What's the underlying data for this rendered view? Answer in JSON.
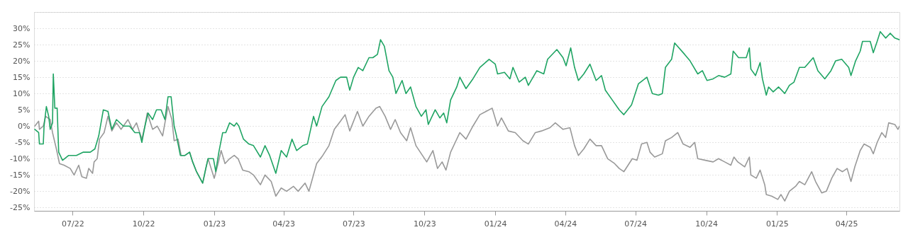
{
  "chart_data": {
    "type": "line",
    "grid": "y",
    "line_style": "solid",
    "xlim": [
      "2022-05-12",
      "2025-06-09"
    ],
    "xticks": [
      {
        "value": "2022-07-01",
        "label": "07/22"
      },
      {
        "value": "2022-10-01",
        "label": "10/22"
      },
      {
        "value": "2023-01-01",
        "label": "01/23"
      },
      {
        "value": "2023-04-01",
        "label": "04/23"
      },
      {
        "value": "2023-07-01",
        "label": "07/23"
      },
      {
        "value": "2023-10-01",
        "label": "10/23"
      },
      {
        "value": "2024-01-01",
        "label": "01/24"
      },
      {
        "value": "2024-04-01",
        "label": "04/24"
      },
      {
        "value": "2024-07-01",
        "label": "07/24"
      },
      {
        "value": "2024-10-01",
        "label": "10/24"
      },
      {
        "value": "2025-01-01",
        "label": "01/25"
      },
      {
        "value": "2025-04-01",
        "label": "04/25"
      }
    ],
    "ylim": [
      -26,
      35
    ],
    "yticks": [
      {
        "value": -25,
        "label": "-25%"
      },
      {
        "value": -20,
        "label": "-20%"
      },
      {
        "value": -15,
        "label": "-15%"
      },
      {
        "value": -10,
        "label": "-10%"
      },
      {
        "value": -5,
        "label": "-5%"
      },
      {
        "value": 0,
        "label": "0%"
      },
      {
        "value": 5,
        "label": "5%"
      },
      {
        "value": 10,
        "label": "10%"
      },
      {
        "value": 15,
        "label": "15%"
      },
      {
        "value": 20,
        "label": "20%"
      },
      {
        "value": 25,
        "label": "25%"
      },
      {
        "value": 30,
        "label": "30%"
      },
      {
        "value": 35,
        "label": null
      }
    ],
    "series": [
      {
        "color": "#999999",
        "x": [
          "2022-05-13",
          "2022-05-18",
          "2022-05-19",
          "2022-05-24",
          "2022-05-27",
          "2022-06-02",
          "2022-06-05",
          "2022-06-10",
          "2022-06-14",
          "2022-06-20",
          "2022-06-28",
          "2022-07-03",
          "2022-07-09",
          "2022-07-13",
          "2022-07-19",
          "2022-07-22",
          "2022-07-27",
          "2022-07-29",
          "2022-08-02",
          "2022-08-05",
          "2022-08-11",
          "2022-08-16",
          "2022-08-21",
          "2022-08-27",
          "2022-09-02",
          "2022-09-11",
          "2022-09-17",
          "2022-09-22",
          "2022-09-29",
          "2022-10-03",
          "2022-10-06",
          "2022-10-13",
          "2022-10-19",
          "2022-10-26",
          "2022-10-29",
          "2022-11-02",
          "2022-11-07",
          "2022-11-10",
          "2022-11-15",
          "2022-11-19",
          "2022-11-24",
          "2022-11-30",
          "2022-12-04",
          "2022-12-09",
          "2022-12-17",
          "2022-12-24",
          "2023-01-01",
          "2023-01-06",
          "2023-01-10",
          "2023-01-15",
          "2023-01-21",
          "2023-01-27",
          "2023-02-01",
          "2023-02-07",
          "2023-02-15",
          "2023-02-21",
          "2023-03-02",
          "2023-03-08",
          "2023-03-16",
          "2023-03-22",
          "2023-03-29",
          "2023-04-05",
          "2023-04-14",
          "2023-04-20",
          "2023-04-29",
          "2023-05-04",
          "2023-05-14",
          "2023-05-22",
          "2023-05-30",
          "2023-06-06",
          "2023-06-14",
          "2023-06-20",
          "2023-06-26",
          "2023-07-06",
          "2023-07-13",
          "2023-07-21",
          "2023-07-30",
          "2023-08-04",
          "2023-08-11",
          "2023-08-18",
          "2023-08-24",
          "2023-08-31",
          "2023-09-08",
          "2023-09-13",
          "2023-09-20",
          "2023-09-27",
          "2023-10-04",
          "2023-10-12",
          "2023-10-18",
          "2023-10-24",
          "2023-10-29",
          "2023-11-04",
          "2023-11-10",
          "2023-11-16",
          "2023-11-24",
          "2023-12-03",
          "2023-12-12",
          "2023-12-20",
          "2023-12-28",
          "2024-01-04",
          "2024-01-09",
          "2024-01-18",
          "2024-01-27",
          "2024-02-06",
          "2024-02-13",
          "2024-02-22",
          "2024-03-01",
          "2024-03-12",
          "2024-03-19",
          "2024-03-29",
          "2024-04-07",
          "2024-04-13",
          "2024-04-18",
          "2024-04-25",
          "2024-05-03",
          "2024-05-11",
          "2024-05-18",
          "2024-05-26",
          "2024-06-04",
          "2024-06-10",
          "2024-06-16",
          "2024-06-27",
          "2024-07-03",
          "2024-07-09",
          "2024-07-16",
          "2024-07-20",
          "2024-07-26",
          "2024-08-05",
          "2024-08-09",
          "2024-08-17",
          "2024-08-25",
          "2024-09-01",
          "2024-09-10",
          "2024-09-16",
          "2024-09-20",
          "2024-09-30",
          "2024-10-10",
          "2024-10-17",
          "2024-10-25",
          "2024-11-02",
          "2024-11-06",
          "2024-11-11",
          "2024-11-20",
          "2024-11-26",
          "2024-11-28",
          "2024-12-05",
          "2024-12-10",
          "2024-12-16",
          "2024-12-18",
          "2024-12-25",
          "2025-01-02",
          "2025-01-06",
          "2025-01-11",
          "2025-01-17",
          "2025-01-25",
          "2025-01-30",
          "2025-02-06",
          "2025-02-15",
          "2025-02-20",
          "2025-02-28",
          "2025-03-06",
          "2025-03-13",
          "2025-03-20",
          "2025-03-27",
          "2025-04-02",
          "2025-04-07",
          "2025-04-12",
          "2025-04-19",
          "2025-04-24",
          "2025-05-02",
          "2025-05-06",
          "2025-05-11",
          "2025-05-17",
          "2025-05-22",
          "2025-05-26",
          "2025-06-03",
          "2025-06-07",
          "2025-06-09"
        ],
        "values": [
          0,
          1.5,
          -1,
          0,
          3,
          2,
          -2,
          -7,
          -11.5,
          -12,
          -13,
          -15,
          -12,
          -15.5,
          -16,
          -13,
          -14.5,
          -11,
          -10,
          -4,
          -2,
          3,
          -1.5,
          1,
          -1,
          2,
          -1,
          1,
          -4,
          0,
          4,
          -1,
          0,
          -3,
          1,
          6,
          2,
          -4.5,
          -4,
          -9,
          -9,
          -8,
          -11,
          -14,
          -17.5,
          -10,
          -16,
          -11.5,
          -7.5,
          -11.5,
          -10,
          -9,
          -10,
          -13.5,
          -14,
          -15,
          -18,
          -15,
          -17,
          -21.5,
          -19,
          -20,
          -18.5,
          -20,
          -17.5,
          -20,
          -11.5,
          -9,
          -6,
          -1,
          1.5,
          3.5,
          -1.5,
          4.5,
          0,
          3,
          5.5,
          6,
          3,
          -1,
          2,
          -2,
          -4.5,
          -0.5,
          -6,
          -8.5,
          -11,
          -7.5,
          -13,
          -11,
          -13.5,
          -8,
          -5,
          -2,
          -4,
          0,
          3.5,
          4.5,
          5.5,
          0,
          2.5,
          -1.5,
          -2,
          -4.5,
          -5.5,
          -2,
          -1.5,
          -0.5,
          1,
          -1,
          -0.5,
          -6,
          -9,
          -7,
          -4,
          -6,
          -6,
          -10,
          -11.5,
          -13,
          -14,
          -10,
          -10.5,
          -5.5,
          -5,
          -8,
          -9.5,
          -8.5,
          -4.5,
          -3.5,
          -2,
          -5.5,
          -6.5,
          -5,
          -10,
          -10.5,
          -11,
          -10,
          -11,
          -12,
          -9.5,
          -11,
          -12.5,
          -9.5,
          -15,
          -16,
          -13.5,
          -18,
          -21,
          -21.5,
          -22.5,
          -21,
          -23,
          -20,
          -18.5,
          -17,
          -18,
          -14,
          -17,
          -20.5,
          -20,
          -16,
          -13,
          -14,
          -13,
          -17,
          -12.5,
          -7.5,
          -5.5,
          -6.5,
          -8.5,
          -5,
          -2,
          -3.5,
          1,
          0.5,
          -1,
          0
        ]
      },
      {
        "color": "#1fa463",
        "x": [
          "2022-05-13",
          "2022-05-18",
          "2022-05-19",
          "2022-05-24",
          "2022-05-25",
          "2022-05-28",
          "2022-05-31",
          "2022-06-02",
          "2022-06-05",
          "2022-06-06",
          "2022-06-08",
          "2022-06-11",
          "2022-06-13",
          "2022-06-18",
          "2022-06-26",
          "2022-07-06",
          "2022-07-15",
          "2022-07-24",
          "2022-07-30",
          "2022-08-04",
          "2022-08-10",
          "2022-08-16",
          "2022-08-21",
          "2022-08-27",
          "2022-09-05",
          "2022-09-13",
          "2022-09-20",
          "2022-09-26",
          "2022-09-29",
          "2022-10-03",
          "2022-10-07",
          "2022-10-13",
          "2022-10-18",
          "2022-10-24",
          "2022-10-29",
          "2022-11-02",
          "2022-11-06",
          "2022-11-10",
          "2022-11-13",
          "2022-11-18",
          "2022-11-24",
          "2022-11-30",
          "2022-12-04",
          "2022-12-09",
          "2022-12-17",
          "2022-12-21",
          "2022-12-24",
          "2022-12-31",
          "2023-01-03",
          "2023-01-07",
          "2023-01-12",
          "2023-01-16",
          "2023-01-21",
          "2023-01-27",
          "2023-01-30",
          "2023-02-02",
          "2023-02-08",
          "2023-02-15",
          "2023-02-21",
          "2023-03-02",
          "2023-03-08",
          "2023-03-14",
          "2023-03-22",
          "2023-03-29",
          "2023-04-05",
          "2023-04-12",
          "2023-04-18",
          "2023-04-26",
          "2023-05-02",
          "2023-05-10",
          "2023-05-14",
          "2023-05-21",
          "2023-05-30",
          "2023-06-08",
          "2023-06-14",
          "2023-06-22",
          "2023-06-26",
          "2023-07-01",
          "2023-07-07",
          "2023-07-13",
          "2023-07-21",
          "2023-07-26",
          "2023-08-01",
          "2023-08-05",
          "2023-08-10",
          "2023-08-16",
          "2023-08-21",
          "2023-08-25",
          "2023-09-02",
          "2023-09-07",
          "2023-09-13",
          "2023-09-20",
          "2023-09-27",
          "2023-10-03",
          "2023-10-06",
          "2023-10-15",
          "2023-10-21",
          "2023-10-26",
          "2023-10-30",
          "2023-11-04",
          "2023-11-12",
          "2023-11-16",
          "2023-11-24",
          "2023-12-03",
          "2023-12-12",
          "2023-12-24",
          "2024-01-01",
          "2024-01-04",
          "2024-01-13",
          "2024-01-20",
          "2024-01-24",
          "2024-02-01",
          "2024-02-09",
          "2024-02-13",
          "2024-02-24",
          "2024-03-04",
          "2024-03-09",
          "2024-03-21",
          "2024-03-29",
          "2024-04-02",
          "2024-04-08",
          "2024-04-13",
          "2024-04-18",
          "2024-04-25",
          "2024-05-03",
          "2024-05-11",
          "2024-05-18",
          "2024-05-23",
          "2024-06-01",
          "2024-06-10",
          "2024-06-16",
          "2024-06-26",
          "2024-07-05",
          "2024-07-16",
          "2024-07-23",
          "2024-07-31",
          "2024-08-05",
          "2024-08-09",
          "2024-08-17",
          "2024-08-21",
          "2024-09-03",
          "2024-09-10",
          "2024-09-20",
          "2024-09-26",
          "2024-10-02",
          "2024-10-10",
          "2024-10-17",
          "2024-10-25",
          "2024-11-02",
          "2024-11-05",
          "2024-11-12",
          "2024-11-22",
          "2024-11-26",
          "2024-11-28",
          "2024-12-04",
          "2024-12-10",
          "2024-12-13",
          "2024-12-18",
          "2024-12-21",
          "2024-12-27",
          "2025-01-03",
          "2025-01-11",
          "2025-01-17",
          "2025-01-23",
          "2025-01-30",
          "2025-02-06",
          "2025-02-17",
          "2025-02-23",
          "2025-03-04",
          "2025-03-12",
          "2025-03-18",
          "2025-03-26",
          "2025-04-04",
          "2025-04-07",
          "2025-04-13",
          "2025-04-19",
          "2025-04-22",
          "2025-05-02",
          "2025-05-06",
          "2025-05-11",
          "2025-05-15",
          "2025-05-22",
          "2025-05-28",
          "2025-06-03",
          "2025-06-09"
        ],
        "values": [
          -1,
          -2,
          -5.5,
          -5.5,
          0,
          6,
          3,
          -1,
          1,
          16,
          5.5,
          5.5,
          -8,
          -10.5,
          -9,
          -9,
          -8,
          -8,
          -7,
          -3,
          5,
          4.5,
          -1,
          2,
          0,
          0,
          -2,
          -2,
          -5,
          0,
          4,
          2,
          5,
          5,
          2,
          9,
          9,
          0,
          -3,
          -9,
          -9,
          -8,
          -11,
          -14,
          -17.5,
          -13,
          -10,
          -10,
          -14,
          -8,
          -2,
          -2,
          1,
          0,
          1,
          0,
          -4,
          -5.5,
          -6,
          -9.5,
          -6,
          -9,
          -14.5,
          -7.5,
          -9.5,
          -4,
          -7.5,
          -6,
          -5.5,
          3,
          0,
          6,
          9,
          14,
          15,
          15,
          11,
          15,
          18,
          17,
          21,
          21,
          22,
          26.5,
          24.5,
          17,
          15,
          10,
          14,
          10,
          12,
          6,
          3,
          5,
          0.5,
          5,
          2.5,
          4,
          1,
          8,
          12,
          15,
          11.5,
          14.5,
          18,
          20.5,
          19,
          16,
          16.5,
          14.5,
          18,
          13.5,
          15,
          12.5,
          17,
          16,
          20.5,
          23.5,
          21,
          18.5,
          24,
          18,
          14,
          16,
          19,
          14,
          15.5,
          11,
          8,
          5,
          3.5,
          6.5,
          13,
          15,
          10,
          9.5,
          10,
          18,
          20.5,
          25.5,
          22,
          20,
          16,
          17,
          14,
          14.5,
          15.5,
          15,
          16,
          23,
          21,
          21,
          24,
          17.5,
          15.5,
          19.5,
          14.5,
          9.5,
          12,
          10.5,
          12,
          10,
          12.5,
          13.5,
          18,
          18,
          21,
          17,
          14.5,
          17,
          20,
          20.5,
          18,
          15.5,
          20,
          23,
          26,
          26,
          22.5,
          26,
          29,
          27,
          28.5,
          27,
          26.5
        ]
      }
    ]
  }
}
